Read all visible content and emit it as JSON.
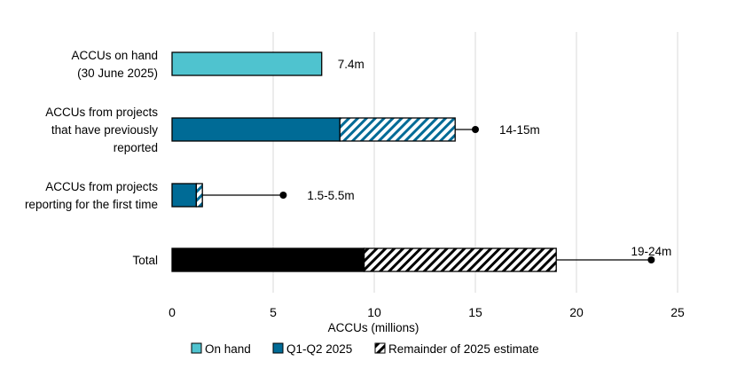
{
  "chart_data": {
    "type": "bar",
    "orientation": "horizontal",
    "stacked": true,
    "xlabel": "ACCUs (millions)",
    "xlim": [
      0,
      25
    ],
    "xticks": [
      0,
      5,
      10,
      15,
      20,
      25
    ],
    "grid": "vertical",
    "legend_position": "bottom",
    "categories": [
      [
        "ACCUs on hand",
        "(30 June 2025)"
      ],
      [
        "ACCUs from projects",
        "that have previously",
        "reported"
      ],
      [
        "ACCUs from projects",
        "reporting for the first time"
      ],
      [
        "Total"
      ]
    ],
    "series": [
      {
        "name": "On hand",
        "color": "#4FC3CF",
        "pattern": "solid",
        "values": [
          7.4,
          0,
          0,
          0
        ]
      },
      {
        "name": "Q1-Q2 2025",
        "color": "#006B96",
        "pattern": "solid",
        "values": [
          0,
          8.3,
          1.2,
          9.5
        ]
      },
      {
        "name": "Remainder of 2025 estimate",
        "color": "#006B96",
        "pattern": "hatched",
        "values": [
          0,
          5.7,
          0.3,
          9.5
        ]
      }
    ],
    "total_bar_color": "#000000",
    "upper_estimates": [
      null,
      15,
      5.5,
      23.7
    ],
    "data_labels": [
      "7.4m",
      "14-15m",
      "1.5-5.5m",
      "19-24m"
    ]
  }
}
